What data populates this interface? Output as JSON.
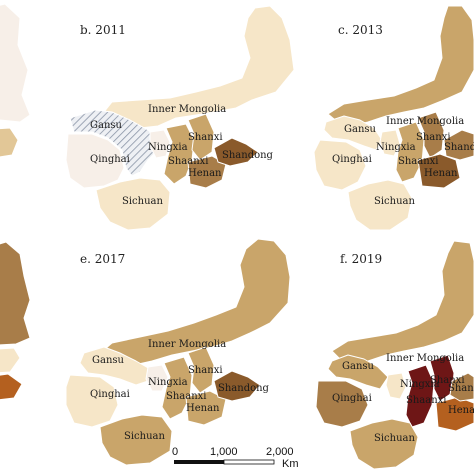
{
  "palette": {
    "lightest": "#f7efe8",
    "cream": "#f6e6c8",
    "tan": "#e2c797",
    "mid": "#c9a56a",
    "brown": "#a87d49",
    "dark": "#8a5a2b",
    "orange": "#b4601f",
    "maroon": "#6e1616",
    "nodata": "#cdd3dc"
  },
  "panels": [
    {
      "title": "",
      "regions": {}
    },
    {
      "title": "b. 2011",
      "regions": {
        "Gansu": "Gansu",
        "Inner Mongolia": "Inner Mongolia",
        "Ningxia": "Ningxia",
        "Qinghai": "Qinghai",
        "Shanxi": "Shanxi",
        "Shaanxi": "Shaanxi",
        "Shandong": "Shandong",
        "Henan": "Henan",
        "Sichuan": "Sichuan"
      }
    },
    {
      "title": "c. 2013",
      "regions": {
        "Gansu": "Gansu",
        "Inner Mongolia": "Inner Mongolia",
        "Ningxia": "Ningxia",
        "Qinghai": "Qinghai",
        "Shanxi": "Shanxi",
        "Shaanxi": "Shaanxi",
        "Shandong": "Shandong",
        "Henan": "Henan",
        "Sichuan": "Sichuan"
      }
    },
    {
      "title": "",
      "regions": {}
    },
    {
      "title": "e. 2017",
      "regions": {
        "Gansu": "Gansu",
        "Inner Mongolia": "Inner Mongolia",
        "Ningxia": "Ningxia",
        "Qinghai": "Qinghai",
        "Shanxi": "Shanxi",
        "Shaanxi": "Shaanxi",
        "Shandong": "Shandong",
        "Henan": "Henan",
        "Sichuan": "Sichuan"
      }
    },
    {
      "title": "f. 2019",
      "regions": {
        "Gansu": "Gansu",
        "Inner Mongolia": "Inner Mongolia",
        "Ningxia": "Ningxia",
        "Qinghai": "Qinghai",
        "Shanxi": "Shanxi",
        "Shaanxi": "Shaanxi",
        "Shandong": "Shandong",
        "Henan": "Henan",
        "Sichuan": "Sichuan"
      }
    }
  ],
  "scalebar": {
    "ticks": [
      "0",
      "1,000",
      "2,000"
    ],
    "unit": "Km"
  }
}
